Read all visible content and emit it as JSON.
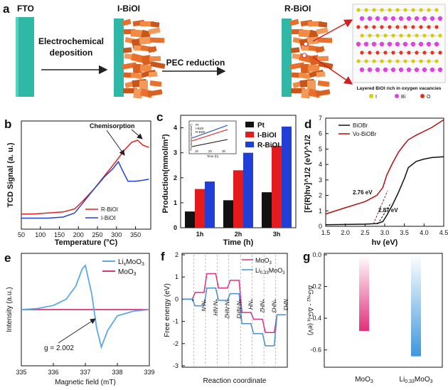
{
  "panel_a": {
    "letter": "a",
    "fto": "FTO",
    "ibioi": "I-BiOI",
    "rbioi": "R-BiOI",
    "step1_line1": "Electrochemical",
    "step1_line2": "deposition",
    "step2": "PEC reduction",
    "crystal_caption": "Layered BiOI rich in oxygen vacancies",
    "legend": [
      "I",
      "Bi",
      "O"
    ],
    "colors": {
      "substrate": "#2fb8a6",
      "flakes": "#e8702a",
      "iodine": "#d7d000",
      "bismuth": "#e040e0",
      "oxygen": "#e53020"
    }
  },
  "chart_data": [
    {
      "panel": "b",
      "type": "line",
      "ylabel": "TCD Signal (a. u.)",
      "xlabel": "Temperature (°C)",
      "xlim": [
        50,
        390
      ],
      "xticks": [
        50,
        100,
        150,
        200,
        250,
        300,
        350
      ],
      "annotation": "Chemisorption",
      "series": [
        {
          "name": "R-BiOI",
          "color": "#e02020",
          "x": [
            50,
            80,
            120,
            160,
            190,
            210,
            240,
            270,
            300,
            320,
            340,
            355,
            370,
            385
          ],
          "y": [
            0.12,
            0.12,
            0.13,
            0.14,
            0.17,
            0.24,
            0.36,
            0.5,
            0.64,
            0.74,
            0.82,
            0.84,
            0.79,
            0.77
          ]
        },
        {
          "name": "I-BiOI",
          "color": "#2040e0",
          "x": [
            50,
            80,
            120,
            160,
            190,
            210,
            240,
            270,
            290,
            305,
            315,
            330,
            350,
            370,
            385
          ],
          "y": [
            0.08,
            0.08,
            0.08,
            0.09,
            0.13,
            0.22,
            0.36,
            0.49,
            0.56,
            0.63,
            0.55,
            0.44,
            0.44,
            0.45,
            0.46
          ]
        }
      ]
    },
    {
      "panel": "c",
      "type": "bar",
      "ylabel": "Production(mmol/m²)",
      "xlabel": "Time (h)",
      "ylim": [
        0,
        4.5
      ],
      "yticks": [
        0,
        1,
        2,
        3,
        4
      ],
      "categories": [
        "1h",
        "2h",
        "3h"
      ],
      "series": [
        {
          "name": "Pt",
          "color": "#111111",
          "values": [
            0.65,
            1.1,
            1.42
          ]
        },
        {
          "name": "I-BiOI",
          "color": "#e41a1c",
          "values": [
            1.55,
            2.3,
            3.28
          ]
        },
        {
          "name": "R-BiOI",
          "color": "#1f3fd6",
          "values": [
            1.85,
            3.0,
            4.05
          ]
        }
      ],
      "inset": {
        "ylabel": "Production(mmol/m²)",
        "xlabel": "Time (h)",
        "categories": [
          "1h",
          "2h",
          "3h"
        ],
        "legend": [
          "Pt",
          "I-BiOI",
          "R-BiOI"
        ]
      }
    },
    {
      "panel": "d",
      "type": "line",
      "ylabel": "[F(R)hν]^1/2 (eV)^1/2",
      "xlabel": "hν (eV)",
      "xlim": [
        1.5,
        4.5
      ],
      "ylim": [
        0,
        7
      ],
      "xticks": [
        1.5,
        2.0,
        2.5,
        3.0,
        3.5,
        4.0,
        4.5
      ],
      "yticks": [
        0,
        1,
        2,
        3,
        4,
        5,
        6,
        7
      ],
      "annotations": [
        "2.76 eV",
        "2.87 eV"
      ],
      "series": [
        {
          "name": "BiOBr",
          "color": "#111111",
          "x": [
            1.5,
            2.0,
            2.5,
            2.8,
            2.95,
            3.05,
            3.2,
            3.35,
            3.5,
            3.6,
            3.8,
            4.0,
            4.2,
            4.5
          ],
          "y": [
            0.1,
            0.12,
            0.14,
            0.18,
            0.3,
            0.7,
            1.4,
            2.2,
            3.1,
            3.8,
            4.2,
            4.35,
            4.45,
            4.5
          ]
        },
        {
          "name": "Vo-BiOBr",
          "color": "#b01010",
          "x": [
            1.5,
            2.0,
            2.5,
            2.8,
            2.95,
            3.05,
            3.2,
            3.35,
            3.5,
            3.6,
            3.8,
            4.0,
            4.2,
            4.5
          ],
          "y": [
            0.8,
            1.2,
            1.6,
            2.0,
            2.5,
            3.3,
            4.1,
            4.8,
            5.3,
            5.6,
            5.9,
            6.15,
            6.4,
            6.9
          ]
        }
      ]
    },
    {
      "panel": "e",
      "type": "line",
      "ylabel": "Intensity (a.u.)",
      "xlabel": "Magnetic field (mT)",
      "xlim": [
        335,
        339
      ],
      "xticks": [
        335,
        336,
        337,
        338,
        339
      ],
      "annotation": "g = 2.002",
      "series": [
        {
          "name": "LixMoO3",
          "color": "#5aa9e6",
          "x": [
            335,
            335.5,
            336,
            336.4,
            336.7,
            336.9,
            337.0,
            337.2,
            337.35,
            337.5,
            337.7,
            338,
            338.5,
            339
          ],
          "y": [
            0.0,
            0.02,
            0.08,
            0.2,
            0.45,
            0.78,
            0.85,
            0.3,
            -0.35,
            -0.72,
            -0.4,
            -0.12,
            -0.03,
            0.0
          ]
        },
        {
          "name": "MoO3",
          "color": "#e0307a",
          "x": [
            335,
            339
          ],
          "y": [
            0.0,
            0.0
          ]
        }
      ]
    },
    {
      "panel": "f",
      "type": "line",
      "ylabel": "Free energy (eV)",
      "xlabel": "Reaction coordinate",
      "ylim": [
        -3,
        2
      ],
      "yticks": [
        2,
        1,
        0,
        -1,
        -2,
        -3
      ],
      "categories": [
        "*",
        "*N-N",
        "*N-NH",
        "*N-NH2",
        "*N-NH3",
        "*NH",
        "*NH2",
        "*NH3",
        "NH3"
      ],
      "series": [
        {
          "name": "MoO3",
          "color": "#d63384",
          "values": [
            0.0,
            0.3,
            1.15,
            0.5,
            0.85,
            -0.6,
            -0.9,
            -1.5,
            -0.7
          ]
        },
        {
          "name": "Li0.33MoO3",
          "color": "#4a8fd4",
          "values": [
            0.0,
            -0.3,
            0.5,
            -0.05,
            0.25,
            -1.1,
            -1.55,
            -2.1,
            -0.7
          ]
        }
      ]
    },
    {
      "panel": "g",
      "type": "bar",
      "ylabel": "ΔG*N2 - ΔG*H (eV)",
      "ylim": [
        -0.7,
        0.0
      ],
      "yticks": [
        0.0,
        -0.2,
        -0.4,
        -0.6
      ],
      "categories": [
        "MoO3",
        "Li0.33MoO3"
      ],
      "series": [
        {
          "values": [
            -0.48,
            -0.64
          ],
          "colors": [
            "#e0307a",
            "#3f97dd"
          ]
        }
      ]
    }
  ]
}
